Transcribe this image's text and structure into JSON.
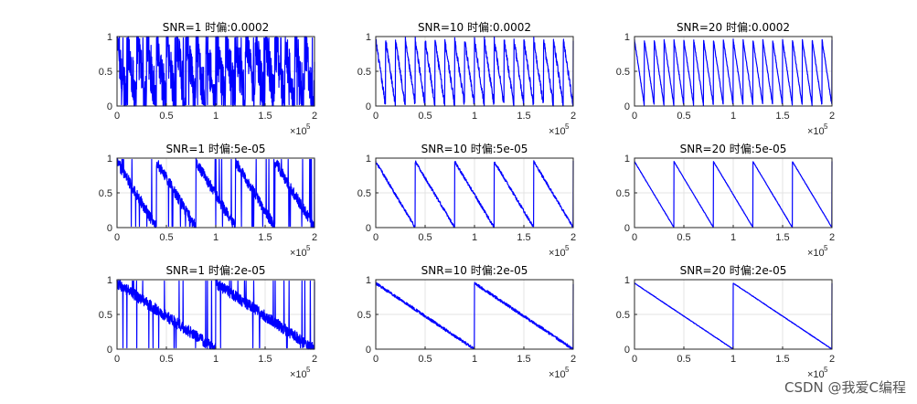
{
  "watermark": "CSDN @我爱C编程",
  "chart_data": [
    {
      "type": "line",
      "title": "SNR=1  时偏:0.0002",
      "snr": 1,
      "offset": 0.0002,
      "periods": 20,
      "noise": 0.35,
      "xlim": [
        0,
        200000
      ],
      "ylim": [
        0,
        1
      ],
      "xticks": [
        0,
        0.5,
        1,
        1.5,
        2
      ],
      "yticks": [
        0,
        0.5,
        1
      ],
      "x_exponent_label": "×10",
      "x_exponent": "5",
      "grid": true,
      "series": [
        {
          "color": "#0000ff"
        }
      ]
    },
    {
      "type": "line",
      "title": "SNR=10  时偏:0.0002",
      "snr": 10,
      "offset": 0.0002,
      "periods": 20,
      "noise": 0.05,
      "xlim": [
        0,
        200000
      ],
      "ylim": [
        0,
        1
      ],
      "xticks": [
        0,
        0.5,
        1,
        1.5,
        2
      ],
      "yticks": [
        0,
        0.5,
        1
      ],
      "x_exponent_label": "×10",
      "x_exponent": "5",
      "grid": true,
      "series": [
        {
          "color": "#0000ff"
        }
      ]
    },
    {
      "type": "line",
      "title": "SNR=20  时偏:0.0002",
      "snr": 20,
      "offset": 0.0002,
      "periods": 20,
      "noise": 0.015,
      "xlim": [
        0,
        200000
      ],
      "ylim": [
        0,
        1
      ],
      "xticks": [
        0,
        0.5,
        1,
        1.5,
        2
      ],
      "yticks": [
        0,
        0.5,
        1
      ],
      "x_exponent_label": "×10",
      "x_exponent": "5",
      "grid": true,
      "series": [
        {
          "color": "#0000ff"
        }
      ]
    },
    {
      "type": "line",
      "title": "SNR=1  时偏:5e-05",
      "snr": 1,
      "offset": 5e-05,
      "periods": 5,
      "noise": 0.08,
      "xlim": [
        0,
        200000
      ],
      "ylim": [
        0,
        1
      ],
      "xticks": [
        0,
        0.5,
        1,
        1.5,
        2
      ],
      "yticks": [
        0,
        0.5,
        1
      ],
      "x_exponent_label": "×10",
      "x_exponent": "5",
      "grid": true,
      "series": [
        {
          "color": "#0000ff"
        }
      ]
    },
    {
      "type": "line",
      "title": "SNR=10  时偏:5e-05",
      "snr": 10,
      "offset": 5e-05,
      "periods": 5,
      "noise": 0.02,
      "xlim": [
        0,
        200000
      ],
      "ylim": [
        0,
        1
      ],
      "xticks": [
        0,
        0.5,
        1,
        1.5,
        2
      ],
      "yticks": [
        0,
        0.5,
        1
      ],
      "x_exponent_label": "×10",
      "x_exponent": "5",
      "grid": true,
      "series": [
        {
          "color": "#0000ff"
        }
      ]
    },
    {
      "type": "line",
      "title": "SNR=20  时偏:5e-05",
      "snr": 20,
      "offset": 5e-05,
      "periods": 5,
      "noise": 0.005,
      "xlim": [
        0,
        200000
      ],
      "ylim": [
        0,
        1
      ],
      "xticks": [
        0,
        0.5,
        1,
        1.5,
        2
      ],
      "yticks": [
        0,
        0.5,
        1
      ],
      "x_exponent_label": "×10",
      "x_exponent": "5",
      "grid": true,
      "series": [
        {
          "color": "#0000ff"
        }
      ]
    },
    {
      "type": "line",
      "title": "SNR=1  时偏:2e-05",
      "snr": 1,
      "offset": 2e-05,
      "periods": 2,
      "noise": 0.08,
      "xlim": [
        0,
        200000
      ],
      "ylim": [
        0,
        1
      ],
      "xticks": [
        0,
        0.5,
        1,
        1.5,
        2
      ],
      "yticks": [
        0,
        0.5,
        1
      ],
      "x_exponent_label": "×10",
      "x_exponent": "5",
      "grid": true,
      "series": [
        {
          "color": "#0000ff"
        }
      ]
    },
    {
      "type": "line",
      "title": "SNR=10  时偏:2e-05",
      "snr": 10,
      "offset": 2e-05,
      "periods": 2,
      "noise": 0.02,
      "xlim": [
        0,
        200000
      ],
      "ylim": [
        0,
        1
      ],
      "xticks": [
        0,
        0.5,
        1,
        1.5,
        2
      ],
      "yticks": [
        0,
        0.5,
        1
      ],
      "x_exponent_label": "×10",
      "x_exponent": "5",
      "grid": true,
      "series": [
        {
          "color": "#0000ff"
        }
      ]
    },
    {
      "type": "line",
      "title": "SNR=20  时偏:2e-05",
      "snr": 20,
      "offset": 2e-05,
      "periods": 2,
      "noise": 0.004,
      "xlim": [
        0,
        200000
      ],
      "ylim": [
        0,
        1
      ],
      "xticks": [
        0,
        0.5,
        1,
        1.5,
        2
      ],
      "yticks": [
        0,
        0.5,
        1
      ],
      "x_exponent_label": "×10",
      "x_exponent": "5",
      "grid": true,
      "series": [
        {
          "color": "#0000ff"
        }
      ]
    }
  ]
}
